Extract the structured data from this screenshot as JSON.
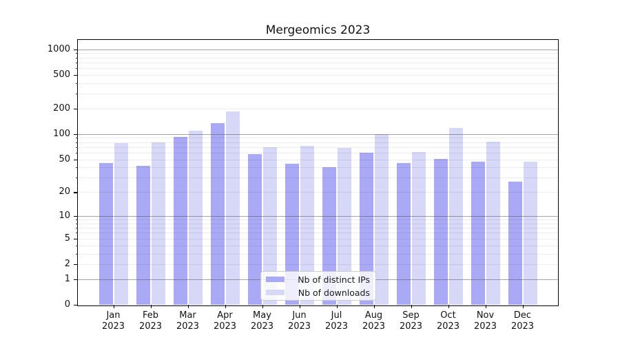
{
  "title": "Mergeomics 2023",
  "legend": {
    "items": [
      {
        "label": "Nb of distinct IPs",
        "color": "#a9a9f6"
      },
      {
        "label": "Nb of downloads",
        "color": "#d7d7f7"
      }
    ]
  },
  "chart_data": {
    "type": "bar",
    "title": "Mergeomics 2023",
    "categories": [
      "Jan 2023",
      "Feb 2023",
      "Mar 2023",
      "Apr 2023",
      "May 2023",
      "Jun 2023",
      "Jul 2023",
      "Aug 2023",
      "Sep 2023",
      "Oct 2023",
      "Nov 2023",
      "Dec 2023"
    ],
    "series": [
      {
        "name": "Nb of distinct IPs",
        "color": "#a9a9f6",
        "values": [
          45,
          42,
          93,
          135,
          58,
          44,
          40,
          60,
          45,
          51,
          47,
          27
        ]
      },
      {
        "name": "Nb of downloads",
        "color": "#d7d7f7",
        "values": [
          78,
          80,
          110,
          185,
          70,
          72,
          69,
          100,
          61,
          118,
          81,
          47
        ]
      }
    ],
    "xlabel": "",
    "ylabel": "",
    "yscale": "log1p",
    "ylim": [
      0,
      1270
    ],
    "yticks_labeled": [
      0,
      1,
      2,
      5,
      10,
      20,
      50,
      100,
      200,
      500,
      1000
    ],
    "yticks_major_grid": [
      1,
      10,
      100,
      1000
    ],
    "yticks_minor": [
      3,
      4,
      6,
      7,
      8,
      9,
      30,
      40,
      60,
      70,
      80,
      90,
      300,
      400,
      600,
      700,
      800,
      900
    ],
    "grid": true,
    "legend_position": "lower center"
  }
}
